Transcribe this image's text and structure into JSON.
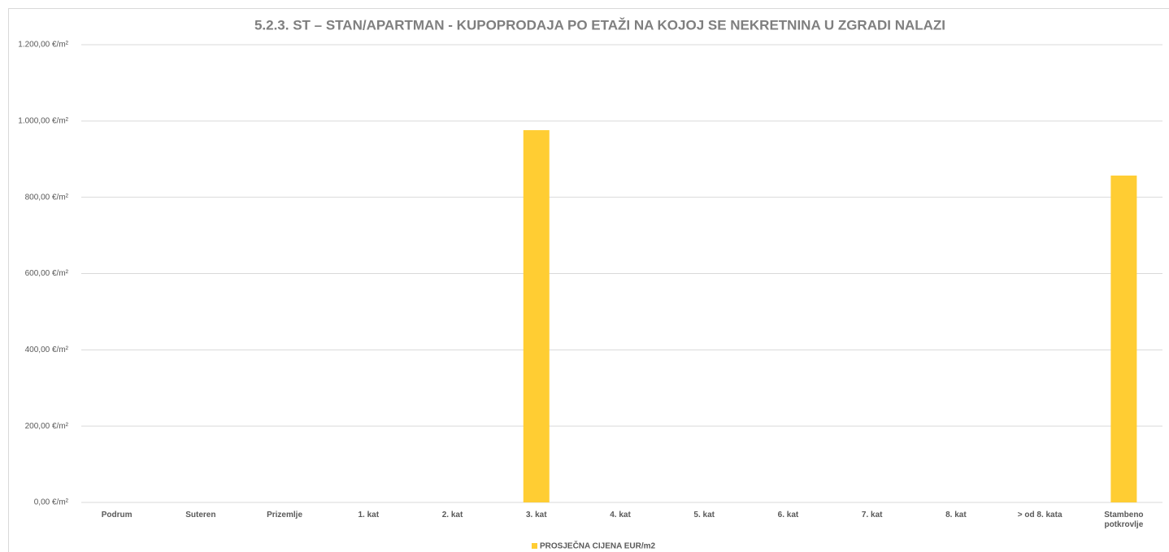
{
  "chart_data": {
    "type": "bar",
    "title": "5.2.3. ST – STAN/APARTMAN - KUPOPRODAJA PO ETAŽI NA KOJOJ SE NEKRETNINA U ZGRADI NALAZI",
    "categories": [
      "Podrum",
      "Suteren",
      "Prizemlje",
      "1. kat",
      "2. kat",
      "3. kat",
      "4. kat",
      "5. kat",
      "6. kat",
      "7. kat",
      "8. kat",
      "> od 8. kata",
      "Stambeno potkrovlje"
    ],
    "series": [
      {
        "name": "PROSJEČNA CIJENA EUR/m2",
        "color": "#ffcd33",
        "values": [
          null,
          null,
          null,
          null,
          null,
          976,
          null,
          null,
          null,
          null,
          null,
          null,
          857
        ]
      }
    ],
    "ylim": [
      0,
      1200
    ],
    "yticks": [
      {
        "value": 0,
        "label": "0,00 €/m²"
      },
      {
        "value": 200,
        "label": "200,00 €/m²"
      },
      {
        "value": 400,
        "label": "400,00 €/m²"
      },
      {
        "value": 600,
        "label": "600,00 €/m²"
      },
      {
        "value": 800,
        "label": "800,00 €/m²"
      },
      {
        "value": 1000,
        "label": "1.000,00 €/m²"
      },
      {
        "value": 1200,
        "label": "1.200,00 €/m²"
      }
    ],
    "grid": true,
    "legend": "bottom"
  }
}
